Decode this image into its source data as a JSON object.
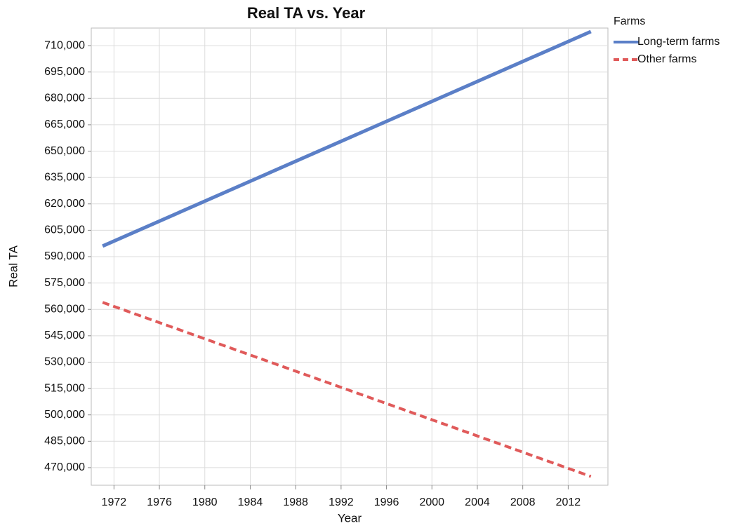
{
  "chart_data": {
    "type": "line",
    "title": "Real TA vs. Year",
    "x_label": "Year",
    "y_label": "Real TA",
    "x": [
      1971,
      2014
    ],
    "series": [
      {
        "name": "Long-term farms",
        "color": "#5b7fc7",
        "dash": "solid",
        "values": [
          596000,
          718000
        ]
      },
      {
        "name": "Other farms",
        "color": "#e05a5a",
        "dash": "dashed",
        "values": [
          564000,
          465000
        ]
      }
    ],
    "legend_title": "Farms",
    "legend": "right",
    "xlim": [
      1970,
      2015.5
    ],
    "xticks": [
      1972,
      1976,
      1980,
      1984,
      1988,
      1992,
      1996,
      2000,
      2004,
      2008,
      2012
    ],
    "ylim": [
      460000,
      720000
    ],
    "yticks": [
      {
        "value": 470000,
        "label": "470,000"
      },
      {
        "value": 485000,
        "label": "485,000"
      },
      {
        "value": 500000,
        "label": "500,000"
      },
      {
        "value": 515000,
        "label": "515,000"
      },
      {
        "value": 530000,
        "label": "530,000"
      },
      {
        "value": 545000,
        "label": "545,000"
      },
      {
        "value": 560000,
        "label": "560,000"
      },
      {
        "value": 575000,
        "label": "575,000"
      },
      {
        "value": 590000,
        "label": "590,000"
      },
      {
        "value": 605000,
        "label": "605,000"
      },
      {
        "value": 620000,
        "label": "620,000"
      },
      {
        "value": 635000,
        "label": "635,000"
      },
      {
        "value": 650000,
        "label": "650,000"
      },
      {
        "value": 665000,
        "label": "665,000"
      },
      {
        "value": 680000,
        "label": "680,000"
      },
      {
        "value": 695000,
        "label": "695,000"
      },
      {
        "value": 710000,
        "label": "710,000"
      }
    ],
    "grid": true
  }
}
